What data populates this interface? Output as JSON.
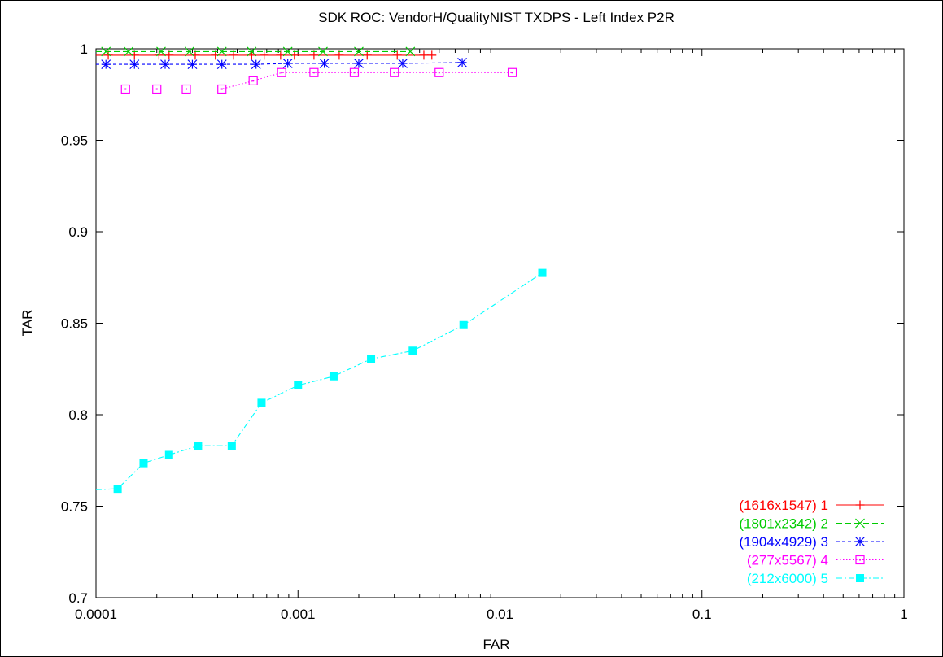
{
  "chart_data": {
    "type": "line",
    "title": "SDK ROC: VendorH/QualityNIST TXDPS - Left Index P2R",
    "xlabel": "FAR",
    "ylabel": "TAR",
    "xscale": "log",
    "xlim": [
      0.0001,
      1
    ],
    "ylim": [
      0.7,
      1
    ],
    "x_ticks": [
      0.0001,
      0.001,
      0.01,
      0.1,
      1
    ],
    "x_tick_labels": [
      "0.0001",
      "0.001",
      "0.01",
      "0.1",
      "1"
    ],
    "y_ticks": [
      0.7,
      0.75,
      0.8,
      0.85,
      0.9,
      0.95,
      1
    ],
    "y_tick_labels": [
      "0.7",
      "0.75",
      "0.8",
      "0.85",
      "0.9",
      "0.95",
      "1"
    ],
    "grid": false,
    "legend_position": "bottom-right",
    "series": [
      {
        "name": "(1616x1547) 1",
        "color": "#ff0000",
        "marker": "plus",
        "dash": "solid",
        "x": [
          0.0001,
          0.000115,
          0.000155,
          0.000205,
          0.00023,
          0.00031,
          0.00039,
          0.00048,
          0.00059,
          0.00068,
          0.00082,
          0.00096,
          0.0012,
          0.0016,
          0.0022,
          0.0031,
          0.0042,
          0.0046
        ],
        "y": [
          0.9965,
          0.9965,
          0.9965,
          0.9965,
          0.9965,
          0.9965,
          0.9965,
          0.9965,
          0.9965,
          0.9965,
          0.9965,
          0.9965,
          0.9965,
          0.9965,
          0.9965,
          0.9965,
          0.9965,
          0.9965
        ]
      },
      {
        "name": "(1801x2342) 2",
        "color": "#00cc00",
        "marker": "x",
        "dash": "dashed",
        "x": [
          0.0001,
          0.000112,
          0.000145,
          0.00021,
          0.00029,
          0.00042,
          0.00059,
          0.00089,
          0.00133,
          0.002,
          0.0036
        ],
        "y": [
          0.9985,
          0.9985,
          0.9985,
          0.9985,
          0.9985,
          0.9985,
          0.9985,
          0.9985,
          0.9985,
          0.9985,
          0.9985
        ]
      },
      {
        "name": "(1904x4929) 3",
        "color": "#0000ff",
        "marker": "star",
        "dash": "short-dashed",
        "x": [
          0.0001,
          0.000112,
          0.000155,
          0.00022,
          0.0003,
          0.00042,
          0.00062,
          0.00089,
          0.00135,
          0.002,
          0.0033,
          0.0065
        ],
        "y": [
          0.9915,
          0.9915,
          0.9915,
          0.9915,
          0.9915,
          0.9915,
          0.9915,
          0.992,
          0.992,
          0.992,
          0.992,
          0.9925
        ]
      },
      {
        "name": "(277x5567) 4",
        "color": "#ff00ff",
        "marker": "open-square",
        "dash": "dotted",
        "x": [
          0.0001,
          0.00014,
          0.0002,
          0.00028,
          0.00042,
          0.0006,
          0.00083,
          0.0012,
          0.0019,
          0.003,
          0.005,
          0.0115
        ],
        "y": [
          0.978,
          0.978,
          0.978,
          0.978,
          0.978,
          0.9825,
          0.987,
          0.987,
          0.987,
          0.987,
          0.987,
          0.987
        ]
      },
      {
        "name": "(212x6000) 5",
        "color": "#00ffff",
        "marker": "filled-square",
        "dash": "dash-dot",
        "x": [
          0.0001,
          0.000128,
          0.000172,
          0.00023,
          0.00032,
          0.00047,
          0.00066,
          0.001,
          0.0015,
          0.0023,
          0.0037,
          0.0066,
          0.0162
        ],
        "y": [
          0.759,
          0.7595,
          0.7735,
          0.778,
          0.783,
          0.783,
          0.8065,
          0.816,
          0.821,
          0.8305,
          0.835,
          0.849,
          0.8775
        ]
      }
    ]
  }
}
